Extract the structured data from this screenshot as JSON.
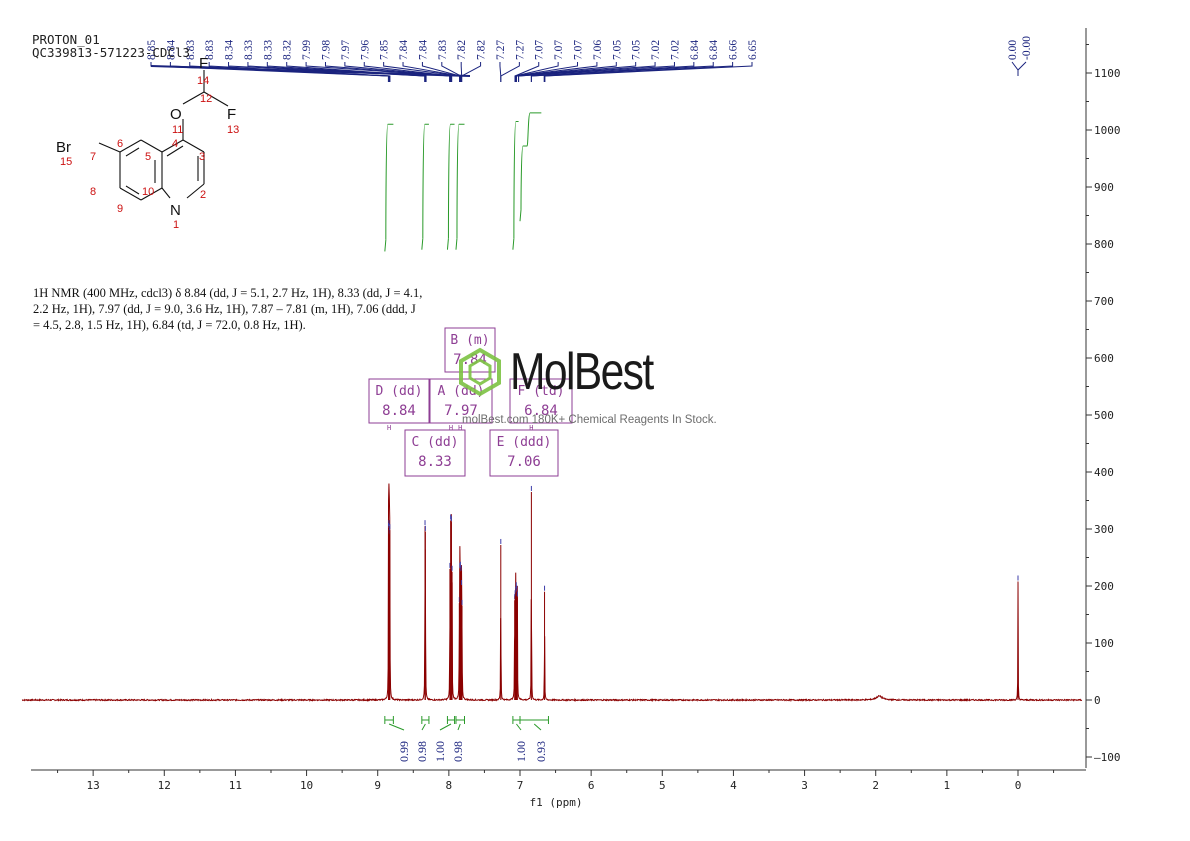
{
  "header": {
    "line1": "PROTON_01",
    "line2": "QC339813-571223-CDCl3"
  },
  "description": "1H NMR (400 MHz, cdcl3) δ 8.84 (dd, J = 5.1, 2.7 Hz, 1H), 8.33 (dd, J = 4.1, 2.2 Hz, 1H), 7.97 (dd, J = 9.0, 3.6 Hz, 1H), 7.87 – 7.81 (m, 1H), 7.06 (ddd, J = 4.5, 2.8, 1.5 Hz, 1H), 6.84 (td, J = 72.0, 0.8 Hz, 1H).",
  "watermark": {
    "brand": "MolBest",
    "tagline": "molBest.com 180K+ Chemical Reagents In Stock."
  },
  "colors": {
    "spectrum": "#8b0000",
    "integral": "#2a9a2a",
    "peak_labels": "#1a237e",
    "multiplet_boxes": "#8e3e94",
    "structure_labels": "#cc1111",
    "watermark_logo": "#7cc242"
  },
  "structure": {
    "atoms": {
      "F14": "F",
      "n14": "14",
      "C12": "12",
      "O11": "O",
      "n11": "11",
      "F13": "F",
      "n13": "13",
      "Br": "Br",
      "n15": "15",
      "n7": "7",
      "n6": "6",
      "n5": "5",
      "n4": "4",
      "n3": "3",
      "n8": "8",
      "n9": "9",
      "n10": "10",
      "N1": "N",
      "n1": "1",
      "n2": "2"
    }
  },
  "chart_data": {
    "type": "line",
    "x_axis": {
      "label": "f1 (ppm)",
      "range": [
        14.0,
        -0.9
      ],
      "reversed": true,
      "ticks": [
        13,
        12,
        11,
        10,
        9,
        8,
        7,
        6,
        5,
        4,
        3,
        2,
        1,
        0
      ]
    },
    "y_axis": {
      "position": "right",
      "range": [
        -110,
        1170
      ],
      "ticks": [
        1100,
        1000,
        900,
        800,
        700,
        600,
        500,
        400,
        300,
        200,
        100,
        0,
        -100
      ]
    },
    "peaks": [
      {
        "ppm": 8.848,
        "height": 300
      },
      {
        "ppm": 8.842,
        "height": 305
      },
      {
        "ppm": 8.836,
        "height": 290
      },
      {
        "ppm": 8.83,
        "height": 298
      },
      {
        "ppm": 8.335,
        "height": 305
      },
      {
        "ppm": 8.33,
        "height": 295
      },
      {
        "ppm": 7.985,
        "height": 230
      },
      {
        "ppm": 7.975,
        "height": 315
      },
      {
        "ppm": 7.965,
        "height": 312
      },
      {
        "ppm": 7.955,
        "height": 225
      },
      {
        "ppm": 7.853,
        "height": 170
      },
      {
        "ppm": 7.845,
        "height": 230
      },
      {
        "ppm": 7.838,
        "height": 232
      },
      {
        "ppm": 7.83,
        "height": 225
      },
      {
        "ppm": 7.822,
        "height": 200
      },
      {
        "ppm": 7.815,
        "height": 165
      },
      {
        "ppm": 7.27,
        "height": 272
      },
      {
        "ppm": 7.075,
        "height": 175
      },
      {
        "ppm": 7.068,
        "height": 182
      },
      {
        "ppm": 7.06,
        "height": 188
      },
      {
        "ppm": 7.052,
        "height": 196
      },
      {
        "ppm": 7.045,
        "height": 190
      },
      {
        "ppm": 7.037,
        "height": 180
      },
      {
        "ppm": 6.84,
        "height": 365
      },
      {
        "ppm": 6.655,
        "height": 190
      },
      {
        "ppm": 1.95,
        "height": 7
      },
      {
        "ppm": 0.0,
        "height": 208
      }
    ],
    "peak_labels": [
      "8.85",
      "8.84",
      "8.83",
      "8.83",
      "8.34",
      "8.33",
      "8.33",
      "8.32",
      "7.99",
      "7.98",
      "7.97",
      "7.96",
      "7.85",
      "7.84",
      "7.84",
      "7.83",
      "7.82",
      "7.82",
      "7.27",
      "7.27",
      "7.07",
      "7.07",
      "7.07",
      "7.06",
      "7.05",
      "7.05",
      "7.02",
      "7.02",
      "6.84",
      "6.84",
      "6.66",
      "6.65"
    ],
    "tms_labels": [
      "0.00",
      "-0.00"
    ],
    "multiplets": [
      {
        "id": "A",
        "type": "dd",
        "shift": "7.97",
        "ppm": 7.97
      },
      {
        "id": "B",
        "type": "m",
        "shift": "7.84",
        "ppm": 7.84
      },
      {
        "id": "C",
        "type": "dd",
        "shift": "8.33",
        "ppm": 8.33
      },
      {
        "id": "D",
        "type": "dd",
        "shift": "8.84",
        "ppm": 8.84
      },
      {
        "id": "E",
        "type": "ddd",
        "shift": "7.06",
        "ppm": 7.06
      },
      {
        "id": "F",
        "type": "td",
        "shift": "6.84",
        "ppm": 6.84
      }
    ],
    "integrals": [
      {
        "from": 8.9,
        "to": 8.78,
        "value": "0.99",
        "steps": [
          [
            8.9,
            797
          ],
          [
            8.78,
            1010
          ]
        ]
      },
      {
        "from": 8.38,
        "to": 8.28,
        "value": "0.98",
        "steps": [
          [
            8.38,
            800
          ],
          [
            8.28,
            1010
          ]
        ]
      },
      {
        "from": 8.02,
        "to": 7.92,
        "value": "1.00",
        "steps": [
          [
            8.02,
            800
          ],
          [
            7.92,
            1010
          ]
        ]
      },
      {
        "from": 7.9,
        "to": 7.78,
        "value": "0.98",
        "steps": [
          [
            7.9,
            800
          ],
          [
            7.78,
            1010
          ]
        ]
      },
      {
        "from": 7.1,
        "to": 7.0,
        "value": "1.00",
        "steps": [
          [
            7.1,
            800
          ],
          [
            7.02,
            1015
          ]
        ]
      },
      {
        "from": 7.0,
        "to": 6.6,
        "value": "0.93",
        "steps": [
          [
            7.0,
            850
          ],
          [
            6.9,
            972
          ],
          [
            6.7,
            1030
          ]
        ]
      }
    ]
  }
}
